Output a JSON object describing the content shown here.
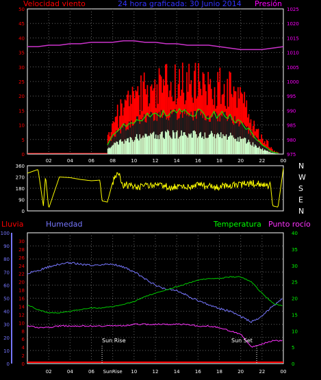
{
  "header": {
    "wind_title": "Velocidad viento",
    "date_title": "24 hora graficada:  30 Junio 2014",
    "pressure_title": "Presión"
  },
  "lower_header": {
    "rain": "Lluvia",
    "humidity": "Humedad",
    "temperature": "Temperatura",
    "dewpoint": "Punto rocío"
  },
  "annotations": {
    "sunrise": "Sun Rise",
    "sunset": "Sun Set"
  },
  "colors": {
    "wind": "#ff0000",
    "gust": "#00ff00",
    "wind_fill": "#ccffcc",
    "pressure": "#cc33cc",
    "direction": "#ffff00",
    "humidity": "#7777ff",
    "temperature": "#00cc00",
    "dewpoint": "#ff33ff",
    "rain": "#ff0000",
    "axis": "#ffffff",
    "grid": "#666666"
  },
  "chart_data": [
    {
      "type": "area",
      "name": "wind-pressure",
      "x_ticks": [
        "02",
        "04",
        "06",
        "08",
        "10",
        "12",
        "14",
        "16",
        "18",
        "20",
        "22",
        "00"
      ],
      "y_left_ticks": [
        "0",
        "5",
        "10",
        "15",
        "20",
        "25",
        "30",
        "35",
        "40",
        "45",
        "50"
      ],
      "y_right_ticks": [
        "975",
        "980",
        "985",
        "990",
        "995",
        "1000",
        "1005",
        "1010",
        "1015",
        "1020",
        "1025"
      ],
      "ylim_left": [
        0,
        50
      ],
      "ylim_right": [
        975,
        1025
      ],
      "x_hours": [
        0,
        1,
        2,
        3,
        4,
        5,
        6,
        7,
        7.5,
        8,
        9,
        10,
        11,
        12,
        13,
        14,
        15,
        16,
        17,
        18,
        19,
        20,
        21,
        22,
        23,
        24
      ],
      "series": [
        {
          "name": "Velocidad viento",
          "values": [
            0,
            0,
            0,
            0,
            0,
            0,
            0,
            0,
            5,
            10,
            14,
            17,
            19,
            20,
            21,
            21,
            21,
            21,
            20,
            20,
            19,
            16,
            11,
            5,
            1,
            0
          ]
        },
        {
          "name": "Presión",
          "values": [
            1012,
            1012,
            1012.5,
            1012.5,
            1013,
            1013,
            1013.5,
            1013.5,
            1013.5,
            1013.5,
            1014,
            1014,
            1013.5,
            1013.5,
            1013,
            1013,
            1012.5,
            1012.5,
            1012.5,
            1012,
            1011.5,
            1011,
            1011,
            1011,
            1011.5,
            1012
          ]
        }
      ]
    },
    {
      "type": "scatter",
      "name": "wind-direction",
      "y_left_ticks": [
        "0",
        "90",
        "180",
        "270",
        "360"
      ],
      "y_right_labels": [
        "N",
        "W",
        "S",
        "E",
        "N"
      ],
      "ylim": [
        0,
        360
      ],
      "x_hours": [
        0,
        1,
        1.5,
        1.7,
        2,
        3,
        4,
        5,
        6,
        6.8,
        7,
        7.5,
        8,
        8.5,
        9,
        10,
        12,
        14,
        16,
        18,
        20,
        21,
        22,
        22.8,
        23,
        23.5,
        24
      ],
      "values": [
        300,
        330,
        40,
        280,
        20,
        270,
        265,
        250,
        240,
        245,
        80,
        70,
        230,
        300,
        210,
        190,
        200,
        185,
        200,
        190,
        210,
        220,
        205,
        200,
        40,
        30,
        340
      ]
    },
    {
      "type": "line",
      "name": "rain-humidity-temperature-dewpoint",
      "y_rain_ticks": [
        "0",
        "2",
        "4",
        "6",
        "8",
        "10",
        "12",
        "14",
        "16",
        "18",
        "20",
        "22",
        "24",
        "26",
        "28",
        "30"
      ],
      "y_humidity_ticks": [
        "0",
        "10",
        "20",
        "30",
        "40",
        "50",
        "60",
        "70",
        "80",
        "90",
        "100"
      ],
      "y_temperature_ticks": [
        "0",
        "5",
        "10",
        "15",
        "20",
        "25",
        "30",
        "35",
        "40"
      ],
      "ylim_humidity": [
        0,
        100
      ],
      "ylim_temperature": [
        0,
        40
      ],
      "x_hours": [
        0,
        1,
        2,
        3,
        4,
        5,
        6,
        7,
        8,
        9,
        10,
        11,
        12,
        13,
        14,
        15,
        16,
        17,
        18,
        19,
        20,
        21,
        22,
        23,
        24
      ],
      "series": [
        {
          "name": "Humedad",
          "values": [
            69,
            71,
            74,
            76,
            77,
            76,
            75,
            76,
            76,
            74,
            70,
            65,
            60,
            57,
            56,
            52,
            48,
            45,
            42,
            40,
            36,
            32,
            36,
            44,
            50
          ]
        },
        {
          "name": "Temperatura",
          "values": [
            18,
            16.5,
            15.5,
            15.5,
            16,
            16.5,
            17,
            17,
            17.5,
            18,
            19,
            20.5,
            21.5,
            22.5,
            23.5,
            24.5,
            25.5,
            26,
            26,
            26.5,
            26.5,
            25,
            21.5,
            18.5,
            17.5
          ]
        },
        {
          "name": "Punto rocío",
          "values": [
            11.5,
            11,
            11,
            11.5,
            11.5,
            11.5,
            11.5,
            11.5,
            11.5,
            11.5,
            12,
            12,
            12,
            12,
            12,
            12,
            11.5,
            11.5,
            11,
            10,
            9,
            5,
            6,
            7,
            7
          ]
        },
        {
          "name": "Lluvia",
          "values": [
            0,
            0,
            0,
            0,
            0,
            0,
            0,
            0,
            0,
            0,
            0,
            0,
            0,
            0,
            0,
            0,
            0,
            0,
            0,
            0,
            0,
            0,
            0,
            0,
            0
          ]
        }
      ],
      "markers": [
        {
          "label": "Sun Rise",
          "hour": 7
        },
        {
          "label": "Sun Set",
          "hour": 21.5
        }
      ],
      "x_ticks": [
        "02",
        "04",
        "06",
        "SunRise",
        "10",
        "12",
        "14",
        "16",
        "18",
        "20",
        "22",
        "00"
      ]
    }
  ]
}
